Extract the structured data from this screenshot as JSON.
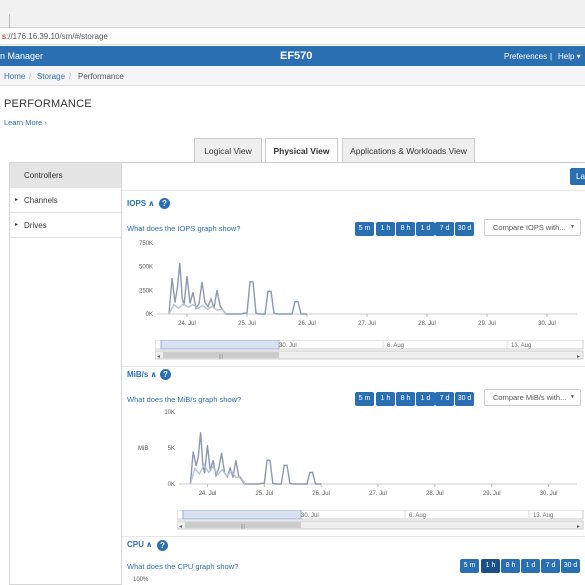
{
  "browser": {
    "url_scheme": "s",
    "url_rest": "://176.16.39.10/sm/#/storage"
  },
  "app": {
    "name": "n Manager",
    "array_name": "EF570",
    "preferences": "Preferences",
    "separator": "|",
    "help": "Help ▾"
  },
  "breadcrumb": {
    "home": "Home",
    "sep": "/",
    "storage": "Storage",
    "current": "Performance"
  },
  "page": {
    "title": "PERFORMANCE",
    "learn_more": "Learn More ›"
  },
  "tabs": [
    {
      "label": "Logical View",
      "active": false
    },
    {
      "label": "Physical View",
      "active": true
    },
    {
      "label": "Applications & Workloads View",
      "active": false
    }
  ],
  "nav": {
    "controllers": "Controllers",
    "channels": "Channels",
    "drives": "Drives",
    "caret": "▸"
  },
  "launch_label": "La",
  "ranges": [
    "5 m",
    "1 h",
    "8 h",
    "1 d",
    "7 d",
    "30 d"
  ],
  "iops": {
    "header": "IOPS",
    "chevron": "∧",
    "help": "?",
    "question": "What does the IOPS graph show?",
    "compare": "Compare IOPS with...",
    "dropdown": "▼",
    "y_ticks": [
      "750K",
      "500K",
      "250K",
      "0K"
    ],
    "x_ticks": [
      "24. Jul",
      "25. Jul",
      "26. Jul",
      "27. Jul",
      "28. Jul",
      "29. Jul",
      "30. Jul"
    ],
    "nav_ticks": [
      "30. Jul",
      "6. Aug",
      "13. Aug"
    ]
  },
  "mibs": {
    "header": "MiB/s",
    "chevron": "∧",
    "help": "?",
    "question": "What does the MiB/s graph show?",
    "compare": "Compare MiB/s with...",
    "dropdown": "▼",
    "y_axis_label": "MiB",
    "y_ticks": [
      "10K",
      "5K",
      "0K"
    ],
    "x_ticks": [
      "24. Jul",
      "25. Jul",
      "26. Jul",
      "27. Jul",
      "28. Jul",
      "29. Jul",
      "30. Jul"
    ],
    "nav_ticks": [
      "30. Jul",
      "6. Aug",
      "13. Aug"
    ]
  },
  "cpu": {
    "header": "CPU",
    "chevron": "∧",
    "help": "?",
    "question": "What does the CPU graph show?",
    "y_top": "100%",
    "selected_range": "1 h"
  },
  "chart_data": [
    {
      "type": "line",
      "title": "IOPS",
      "ylim": [
        0,
        750000
      ],
      "y_ticks": [
        "750K",
        "500K",
        "250K",
        "0K"
      ],
      "x_ticks": [
        "24. Jul",
        "25. Jul",
        "26. Jul",
        "27. Jul",
        "28. Jul",
        "29. Jul",
        "30. Jul"
      ],
      "series": [
        {
          "color": "#8a99b2",
          "x": [
            23.7,
            23.75,
            23.8,
            23.84,
            23.88,
            23.92,
            23.95,
            24.0,
            24.05,
            24.1,
            24.15,
            24.2,
            24.25,
            24.3,
            24.35,
            24.4,
            24.45,
            24.5,
            24.55,
            24.6,
            24.65,
            24.7,
            24.75,
            24.8,
            24.85,
            24.9,
            24.95,
            25.0,
            25.05,
            25.1,
            25.15,
            25.2,
            25.25,
            25.3,
            25.35,
            25.4,
            25.45,
            25.5,
            25.55,
            25.6,
            25.65,
            25.7,
            25.75,
            25.8,
            25.85,
            25.9,
            25.95,
            26.0
          ],
          "y": [
            0,
            380000,
            120000,
            280000,
            540000,
            170000,
            90000,
            400000,
            110000,
            230000,
            60000,
            110000,
            340000,
            120000,
            80000,
            160000,
            60000,
            250000,
            90000,
            40000,
            0,
            0,
            0,
            0,
            0,
            0,
            10000,
            10000,
            340000,
            340000,
            10000,
            0,
            0,
            0,
            240000,
            240000,
            10000,
            0,
            0,
            0,
            0,
            0,
            0,
            130000,
            130000,
            0,
            0,
            0
          ]
        },
        {
          "color": "#b6c2d6",
          "x": [
            23.7,
            23.78,
            23.86,
            23.94,
            24.02,
            24.1,
            24.18,
            24.26,
            24.34,
            24.42,
            24.5,
            24.58,
            24.66
          ],
          "y": [
            0,
            100000,
            60000,
            110000,
            70000,
            100000,
            60000,
            90000,
            50000,
            80000,
            40000,
            50000,
            0
          ]
        }
      ]
    },
    {
      "type": "line",
      "title": "MiB/s",
      "ylabel": "MiB",
      "ylim": [
        0,
        10000
      ],
      "y_ticks": [
        "10K",
        "5K",
        "0K"
      ],
      "x_ticks": [
        "24. Jul",
        "25. Jul",
        "26. Jul",
        "27. Jul",
        "28. Jul",
        "29. Jul",
        "30. Jul"
      ],
      "series": [
        {
          "color": "#8a99b2",
          "x": [
            23.7,
            23.75,
            23.8,
            23.84,
            23.88,
            23.92,
            23.95,
            24.0,
            24.05,
            24.1,
            24.15,
            24.2,
            24.25,
            24.3,
            24.35,
            24.4,
            24.45,
            24.5,
            24.55,
            24.6,
            24.65,
            24.7,
            24.75,
            24.8,
            24.85,
            24.9,
            24.95,
            25.0,
            25.05,
            25.1,
            25.15,
            25.2,
            25.25,
            25.3,
            25.35,
            25.4,
            25.45,
            25.5,
            25.55,
            25.6,
            25.65,
            25.7,
            25.75,
            25.8,
            25.85,
            25.9,
            25.95,
            26.0
          ],
          "y": [
            0,
            4500,
            2500,
            3800,
            7200,
            2600,
            1500,
            5400,
            1800,
            3300,
            1200,
            2200,
            4300,
            1600,
            1000,
            2200,
            900,
            3300,
            1100,
            600,
            0,
            0,
            0,
            0,
            0,
            0,
            100,
            100,
            3300,
            3300,
            100,
            0,
            0,
            0,
            2600,
            2600,
            100,
            0,
            0,
            0,
            0,
            0,
            0,
            1600,
            1600,
            0,
            0,
            0
          ]
        },
        {
          "color": "#b6c2d6",
          "x": [
            23.7,
            23.78,
            23.86,
            23.94,
            24.02,
            24.1,
            24.18,
            24.26,
            24.34,
            24.42,
            24.5,
            24.58,
            24.66
          ],
          "y": [
            0,
            2200,
            1400,
            2700,
            1600,
            2400,
            1300,
            2000,
            1100,
            1800,
            900,
            1000,
            0
          ]
        }
      ]
    }
  ]
}
